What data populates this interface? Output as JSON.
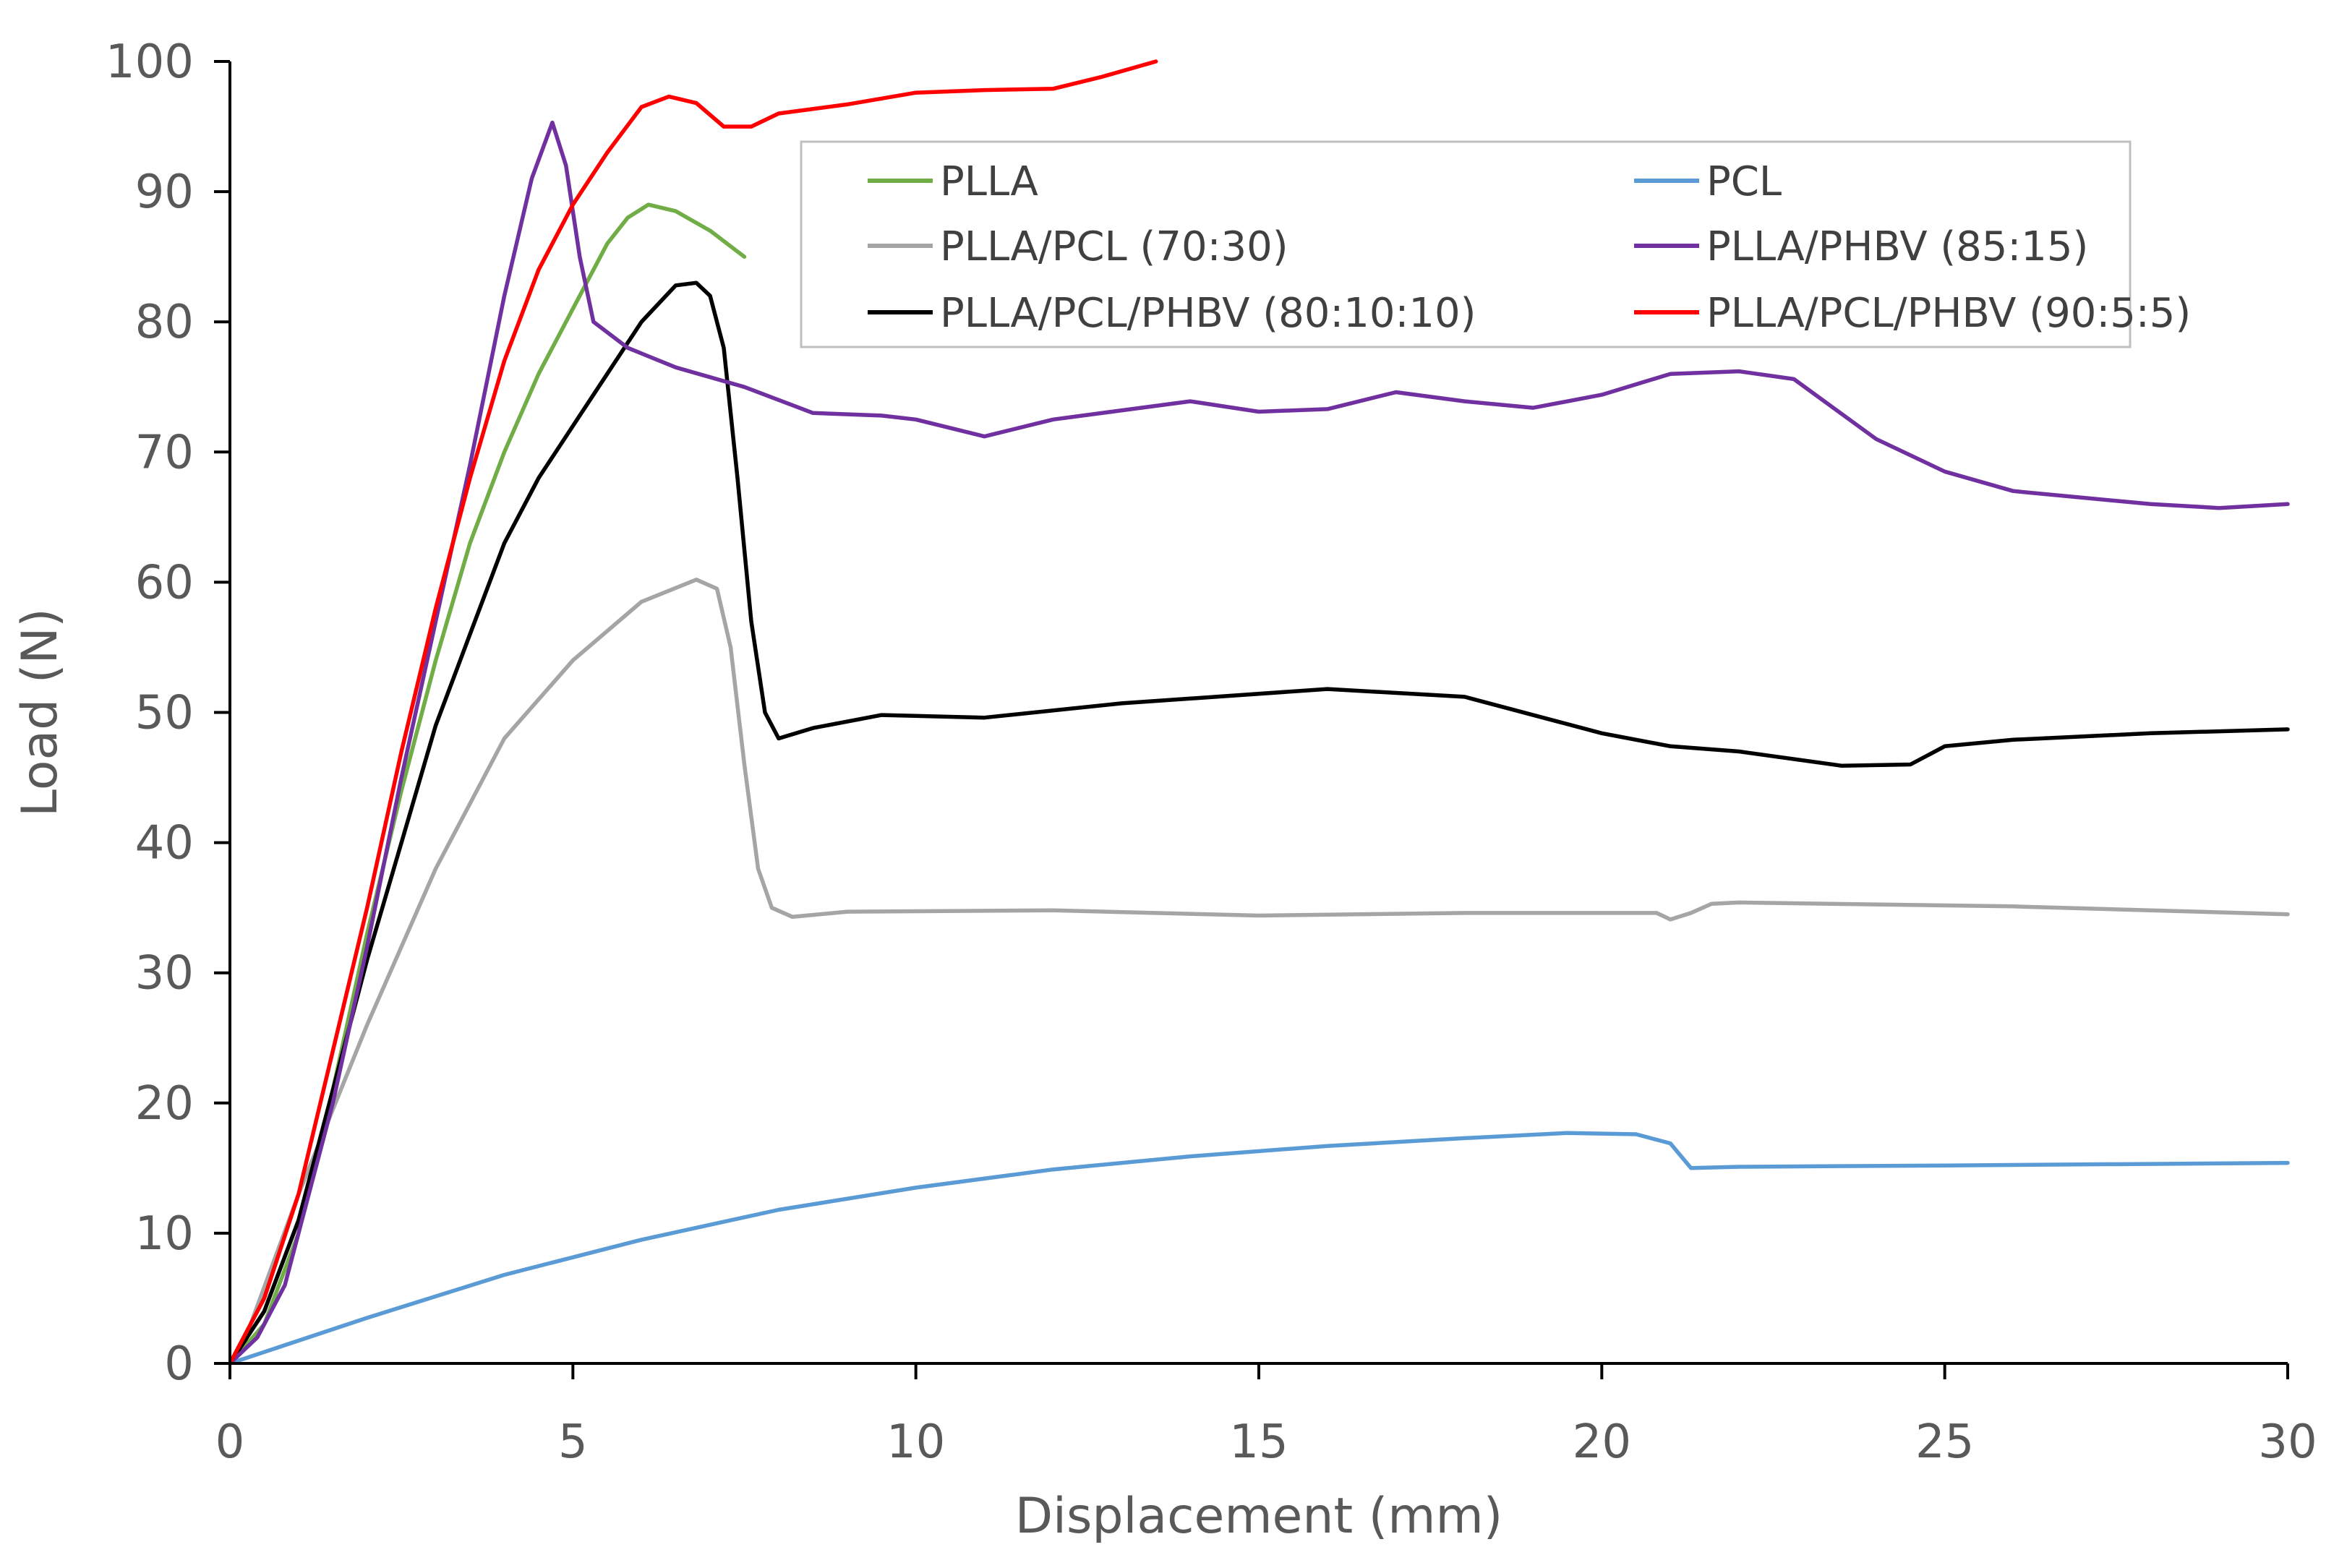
{
  "chart_data": {
    "type": "line",
    "title": "",
    "xlabel": "Displacement (mm)",
    "ylabel": "Load (N)",
    "xlim": [
      0,
      30
    ],
    "ylim": [
      0,
      100
    ],
    "x_ticks": [
      0,
      5,
      10,
      15,
      20,
      25,
      30
    ],
    "y_ticks": [
      0,
      10,
      20,
      30,
      40,
      50,
      60,
      70,
      80,
      90,
      100
    ],
    "grid": false,
    "legend_position": "top-right",
    "series": [
      {
        "name": "PLLA",
        "color": "#70AD47",
        "points": [
          [
            0,
            0
          ],
          [
            0.5,
            3
          ],
          [
            1,
            10
          ],
          [
            1.5,
            21
          ],
          [
            2,
            33
          ],
          [
            2.5,
            44
          ],
          [
            3,
            54
          ],
          [
            3.5,
            63
          ],
          [
            4,
            70
          ],
          [
            4.5,
            76
          ],
          [
            5,
            81
          ],
          [
            5.5,
            86
          ],
          [
            5.8,
            88
          ],
          [
            6.1,
            89
          ],
          [
            6.5,
            88.5
          ],
          [
            7,
            87
          ],
          [
            7.5,
            85
          ]
        ]
      },
      {
        "name": "PCL",
        "color": "#5B9BD5",
        "points": [
          [
            0,
            0
          ],
          [
            2,
            3.5
          ],
          [
            4,
            6.8
          ],
          [
            6,
            9.5
          ],
          [
            8,
            11.8
          ],
          [
            10,
            13.5
          ],
          [
            12,
            14.9
          ],
          [
            14,
            15.9
          ],
          [
            16,
            16.7
          ],
          [
            18,
            17.3
          ],
          [
            19.5,
            17.7
          ],
          [
            20.5,
            17.6
          ],
          [
            21,
            16.9
          ],
          [
            21.3,
            15
          ],
          [
            22,
            15.1
          ],
          [
            25,
            15.2
          ],
          [
            30,
            15.4
          ]
        ]
      },
      {
        "name": "PLLA/PCL (70:30)",
        "color": "#A5A5A5",
        "points": [
          [
            0,
            0
          ],
          [
            0.3,
            3
          ],
          [
            1,
            13
          ],
          [
            2,
            26
          ],
          [
            3,
            38
          ],
          [
            4,
            48
          ],
          [
            5,
            54
          ],
          [
            6,
            58.5
          ],
          [
            6.8,
            60.2
          ],
          [
            7.1,
            59.5
          ],
          [
            7.3,
            55
          ],
          [
            7.5,
            46
          ],
          [
            7.7,
            38
          ],
          [
            7.9,
            35
          ],
          [
            8.2,
            34.3
          ],
          [
            9,
            34.7
          ],
          [
            12,
            34.8
          ],
          [
            15,
            34.4
          ],
          [
            18,
            34.6
          ],
          [
            20.8,
            34.6
          ],
          [
            21,
            34.1
          ],
          [
            21.3,
            34.6
          ],
          [
            21.6,
            35.3
          ],
          [
            22,
            35.4
          ],
          [
            26,
            35.1
          ],
          [
            30,
            34.5
          ]
        ]
      },
      {
        "name": "PLLA/PHBV (85:15)",
        "color": "#7030A0",
        "points": [
          [
            0,
            0
          ],
          [
            0.4,
            2
          ],
          [
            0.8,
            6
          ],
          [
            1.5,
            20
          ],
          [
            2,
            32
          ],
          [
            2.5,
            45
          ],
          [
            3,
            57
          ],
          [
            3.5,
            69
          ],
          [
            4,
            82
          ],
          [
            4.4,
            91
          ],
          [
            4.7,
            95.3
          ],
          [
            4.9,
            92
          ],
          [
            5.1,
            85
          ],
          [
            5.3,
            80
          ],
          [
            5.8,
            78
          ],
          [
            6.5,
            76.5
          ],
          [
            7.5,
            75
          ],
          [
            8.5,
            73
          ],
          [
            9.5,
            72.8
          ],
          [
            10,
            72.5
          ],
          [
            11,
            71.2
          ],
          [
            12,
            72.5
          ],
          [
            14,
            73.9
          ],
          [
            15,
            73.1
          ],
          [
            16,
            73.3
          ],
          [
            17,
            74.6
          ],
          [
            18,
            73.9
          ],
          [
            19,
            73.4
          ],
          [
            20,
            74.4
          ],
          [
            21,
            76
          ],
          [
            22,
            76.2
          ],
          [
            22.8,
            75.6
          ],
          [
            24,
            71
          ],
          [
            25,
            68.5
          ],
          [
            26,
            67
          ],
          [
            28,
            66
          ],
          [
            29,
            65.7
          ],
          [
            30,
            66
          ]
        ]
      },
      {
        "name": "PLLA/PCL/PHBV (80:10:10)",
        "color": "#000000",
        "points": [
          [
            0,
            0
          ],
          [
            0.5,
            4
          ],
          [
            1,
            11
          ],
          [
            1.5,
            21
          ],
          [
            2,
            31
          ],
          [
            2.5,
            40
          ],
          [
            3,
            49
          ],
          [
            3.5,
            56
          ],
          [
            4,
            63
          ],
          [
            4.5,
            68
          ],
          [
            5,
            72
          ],
          [
            5.5,
            76
          ],
          [
            6,
            80
          ],
          [
            6.5,
            82.8
          ],
          [
            6.8,
            83
          ],
          [
            7,
            82
          ],
          [
            7.2,
            78
          ],
          [
            7.4,
            68
          ],
          [
            7.6,
            57
          ],
          [
            7.8,
            50
          ],
          [
            8,
            48
          ],
          [
            8.5,
            48.8
          ],
          [
            9.5,
            49.8
          ],
          [
            11,
            49.6
          ],
          [
            13,
            50.7
          ],
          [
            16,
            51.8
          ],
          [
            18,
            51.2
          ],
          [
            20,
            48.4
          ],
          [
            21,
            47.4
          ],
          [
            22,
            47
          ],
          [
            23.5,
            45.9
          ],
          [
            24.5,
            46
          ],
          [
            25,
            47.4
          ],
          [
            26,
            47.9
          ],
          [
            28,
            48.4
          ],
          [
            30,
            48.7
          ]
        ]
      },
      {
        "name": "PLLA/PCL/PHBV (90:5:5)",
        "color": "#FF0000",
        "points": [
          [
            0,
            0
          ],
          [
            0.5,
            5
          ],
          [
            1,
            13
          ],
          [
            1.5,
            24
          ],
          [
            2,
            35
          ],
          [
            2.5,
            47
          ],
          [
            3,
            58
          ],
          [
            3.5,
            68
          ],
          [
            4,
            77
          ],
          [
            4.5,
            84
          ],
          [
            5,
            89
          ],
          [
            5.5,
            93
          ],
          [
            6,
            96.5
          ],
          [
            6.4,
            97.3
          ],
          [
            6.8,
            96.8
          ],
          [
            7.2,
            95
          ],
          [
            7.6,
            95
          ],
          [
            8,
            96
          ],
          [
            9,
            96.7
          ],
          [
            10,
            97.6
          ],
          [
            11,
            97.8
          ],
          [
            12,
            97.9
          ],
          [
            12.7,
            98.8
          ],
          [
            13.5,
            100
          ]
        ]
      }
    ]
  }
}
